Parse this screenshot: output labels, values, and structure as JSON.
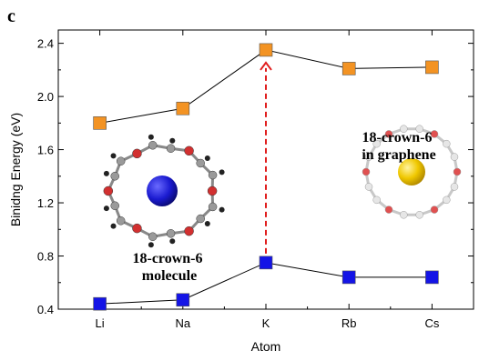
{
  "panel_label": "c",
  "colors": {
    "graphene_series": "#f39323",
    "molecule_series": "#1414e6",
    "arrow": "#e01e1e",
    "line": "#000000"
  },
  "chart_data": {
    "type": "line",
    "xlabel": "Atom",
    "ylabel": "Binidng Energy (eV)",
    "categories": [
      "Li",
      "Na",
      "K",
      "Rb",
      "Cs"
    ],
    "ylim": [
      0.4,
      2.5
    ],
    "yticks": [
      "0.4",
      "0.8",
      "1.2",
      "1.6",
      "2.0",
      "2.4"
    ],
    "grid": false,
    "series": [
      {
        "name": "18-crown-6 in graphene",
        "marker": "square",
        "color": "#f39323",
        "values": [
          1.8,
          1.91,
          2.35,
          2.21,
          2.22
        ]
      },
      {
        "name": "18-crown-6 molecule",
        "marker": "square",
        "color": "#1414e6",
        "values": [
          0.44,
          0.47,
          0.75,
          0.64,
          0.64
        ]
      }
    ],
    "annotations": [
      {
        "lines": [
          "18-crown-6",
          "in graphene"
        ]
      },
      {
        "lines": [
          "18-crown-6",
          "molecule"
        ]
      }
    ],
    "arrow": {
      "category": "K",
      "from": 0.75,
      "to": 2.35,
      "style": "dashed"
    }
  }
}
